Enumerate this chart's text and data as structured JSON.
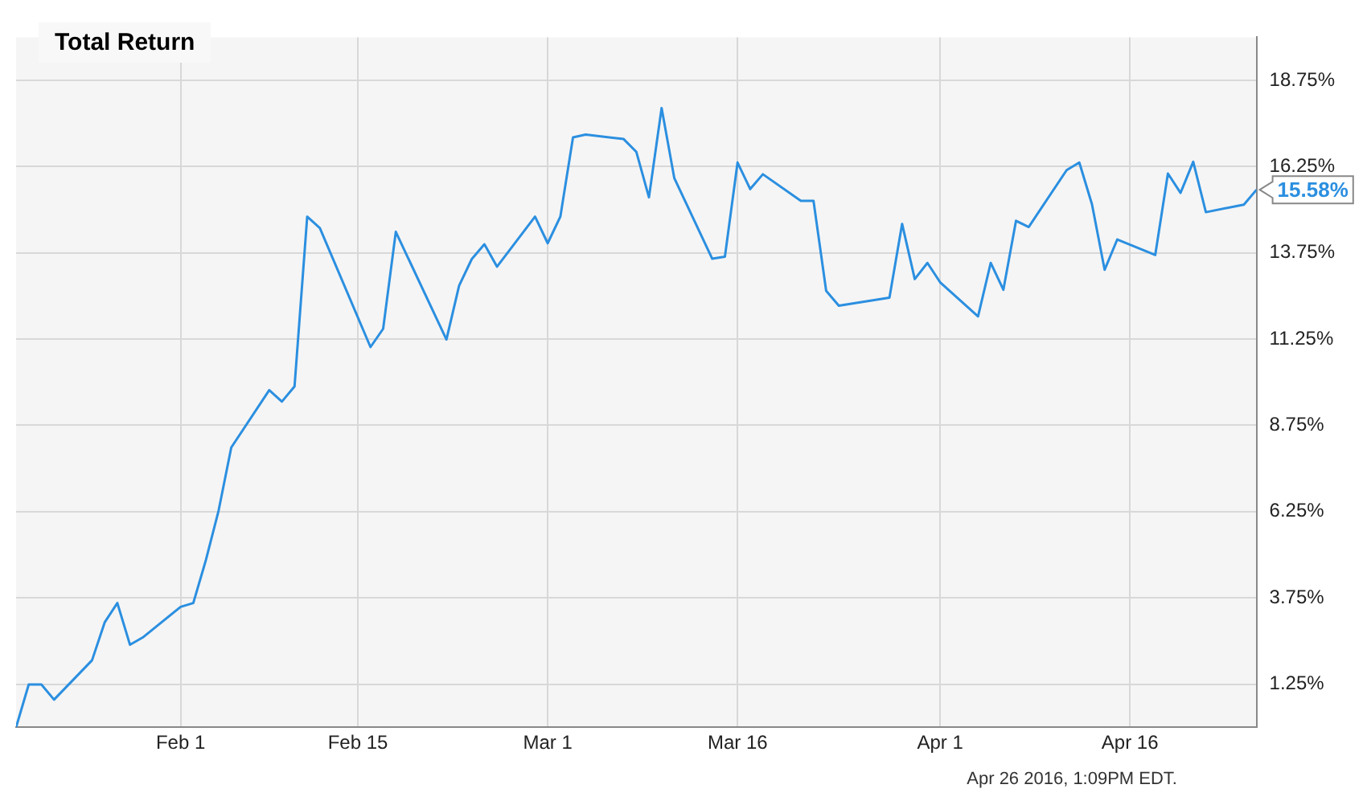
{
  "chart_data": {
    "type": "line",
    "title": "Total Return",
    "x": [
      "2016-01-19",
      "2016-01-20",
      "2016-01-21",
      "2016-01-22",
      "2016-01-25",
      "2016-01-26",
      "2016-01-27",
      "2016-01-28",
      "2016-01-29",
      "2016-02-01",
      "2016-02-02",
      "2016-02-03",
      "2016-02-04",
      "2016-02-05",
      "2016-02-08",
      "2016-02-09",
      "2016-02-10",
      "2016-02-11",
      "2016-02-12",
      "2016-02-16",
      "2016-02-17",
      "2016-02-18",
      "2016-02-22",
      "2016-02-23",
      "2016-02-24",
      "2016-02-25",
      "2016-02-26",
      "2016-02-29",
      "2016-03-01",
      "2016-03-02",
      "2016-03-03",
      "2016-03-04",
      "2016-03-07",
      "2016-03-08",
      "2016-03-09",
      "2016-03-10",
      "2016-03-11",
      "2016-03-14",
      "2016-03-15",
      "2016-03-16",
      "2016-03-17",
      "2016-03-18",
      "2016-03-21",
      "2016-03-22",
      "2016-03-23",
      "2016-03-24",
      "2016-03-28",
      "2016-03-29",
      "2016-03-30",
      "2016-03-31",
      "2016-04-01",
      "2016-04-04",
      "2016-04-05",
      "2016-04-06",
      "2016-04-07",
      "2016-04-08",
      "2016-04-11",
      "2016-04-12",
      "2016-04-13",
      "2016-04-14",
      "2016-04-15",
      "2016-04-18",
      "2016-04-19",
      "2016-04-20",
      "2016-04-21",
      "2016-04-22",
      "2016-04-25",
      "2016-04-26"
    ],
    "series": [
      {
        "color": "#2b8fe0",
        "values": [
          0,
          1.24,
          1.24,
          0.8,
          1.94,
          3.04,
          3.6,
          2.39,
          2.6,
          3.49,
          3.6,
          4.85,
          6.28,
          8.11,
          9.77,
          9.44,
          9.88,
          14.8,
          14.47,
          11.02,
          11.55,
          14.36,
          11.24,
          12.8,
          13.57,
          14.0,
          13.35,
          14.8,
          14.03,
          14.8,
          17.1,
          17.18,
          17.05,
          16.68,
          15.36,
          17.95,
          15.92,
          13.58,
          13.64,
          16.37,
          15.6,
          16.03,
          15.26,
          15.26,
          12.65,
          12.22,
          12.45,
          14.59,
          12.99,
          13.46,
          12.9,
          11.91,
          13.46,
          12.68,
          14.68,
          14.5,
          16.15,
          16.37,
          15.16,
          13.26,
          14.14,
          13.69,
          16.05,
          15.49,
          16.39,
          14.93,
          15.15,
          15.58
        ]
      }
    ],
    "xlim": [
      "2016-01-19",
      "2016-04-26"
    ],
    "xticks": [
      {
        "value": "2016-02-01",
        "label": "Feb 1"
      },
      {
        "value": "2016-02-15",
        "label": "Feb 15"
      },
      {
        "value": "2016-03-01",
        "label": "Mar 1"
      },
      {
        "value": "2016-03-16",
        "label": "Mar 16"
      },
      {
        "value": "2016-04-01",
        "label": "Apr 1"
      },
      {
        "value": "2016-04-16",
        "label": "Apr 16"
      }
    ],
    "ylim": [
      0,
      20
    ],
    "yticks": [
      {
        "value": 1.25,
        "label": "1.25%"
      },
      {
        "value": 3.75,
        "label": "3.75%"
      },
      {
        "value": 6.25,
        "label": "6.25%"
      },
      {
        "value": 8.75,
        "label": "8.75%"
      },
      {
        "value": 11.25,
        "label": "11.25%"
      },
      {
        "value": 13.75,
        "label": "13.75%"
      },
      {
        "value": 16.25,
        "label": "16.25%"
      },
      {
        "value": 18.75,
        "label": "18.75%"
      }
    ],
    "annotations": [
      {
        "text": "15.58%",
        "x": "2016-04-26",
        "y": 15.58
      },
      "Apr 26 2016, 1:09PM EDT."
    ],
    "grid": true,
    "legend": false,
    "marker": "none",
    "line_style": "solid"
  }
}
